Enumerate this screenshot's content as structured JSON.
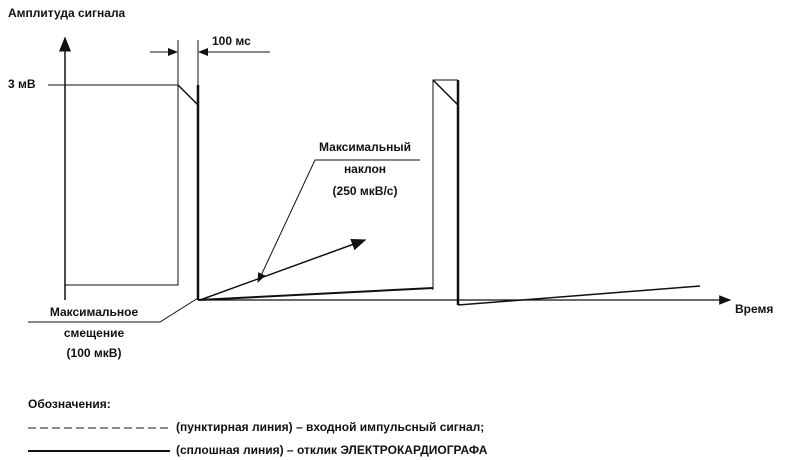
{
  "y_axis_label": "Амплитуда сигнала",
  "x_axis_label": "Время",
  "interval_label": "100 мс",
  "amplitude_label": "3 мВ",
  "slope_label": [
    "Максимальный",
    "наклон",
    "(250 мкВ/с)"
  ],
  "offset_label": [
    "Максимальное",
    "смещение",
    "(100 мкВ)"
  ],
  "legend": {
    "title": "Обозначения:",
    "items": [
      "(пунктирная линия) – входной импульсный сигнал;",
      "(сплошная линия) – отклик ЭЛЕКТРОКАРДИОГРАФА"
    ]
  }
}
